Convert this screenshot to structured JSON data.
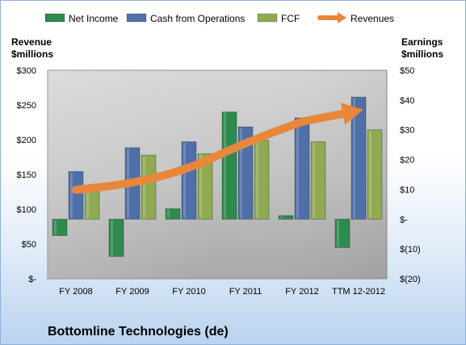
{
  "chart_data": {
    "type": "bar",
    "company": "Bottomline Technologies (de)",
    "categories": [
      "FY 2008",
      "FY 2009",
      "FY 2010",
      "FY 2011",
      "FY 2012",
      "TTM 12-2012"
    ],
    "left_axis": {
      "label_line1": "Revenue",
      "label_line2": "$millions",
      "ylim": [
        0,
        300
      ],
      "ticks": [
        0,
        50,
        100,
        150,
        200,
        250,
        300
      ],
      "tick_labels": [
        "$-",
        "$50",
        "$100",
        "$150",
        "$200",
        "$250",
        "$300"
      ]
    },
    "right_axis": {
      "label_line1": "Earnings",
      "label_line2": "$millions",
      "ylim": [
        -20,
        50
      ],
      "ticks": [
        -20,
        -10,
        0,
        10,
        20,
        30,
        40,
        50
      ],
      "tick_labels": [
        "$(20)",
        "$(10)",
        "$-",
        "$10",
        "$20",
        "$30",
        "$40",
        "$50"
      ]
    },
    "series": [
      {
        "name": "Net Income",
        "axis": "right",
        "kind": "bar",
        "color": "#2f8a4e",
        "values": [
          -5.5,
          -12.5,
          3.5,
          36,
          1.2,
          -9.5
        ]
      },
      {
        "name": "Cash from Operations",
        "axis": "right",
        "kind": "bar",
        "color": "#4f6fa8",
        "values": [
          16,
          24,
          26,
          31,
          34,
          41
        ]
      },
      {
        "name": "FCF",
        "axis": "right",
        "kind": "bar",
        "color": "#8faa52",
        "values": [
          10.5,
          21.5,
          22,
          26.5,
          26,
          30
        ]
      },
      {
        "name": "Revenues",
        "axis": "left",
        "kind": "line",
        "color": "#e8873a",
        "values": [
          128,
          137,
          158,
          196,
          226,
          242
        ]
      }
    ],
    "grid": false,
    "legend_position": "top"
  }
}
